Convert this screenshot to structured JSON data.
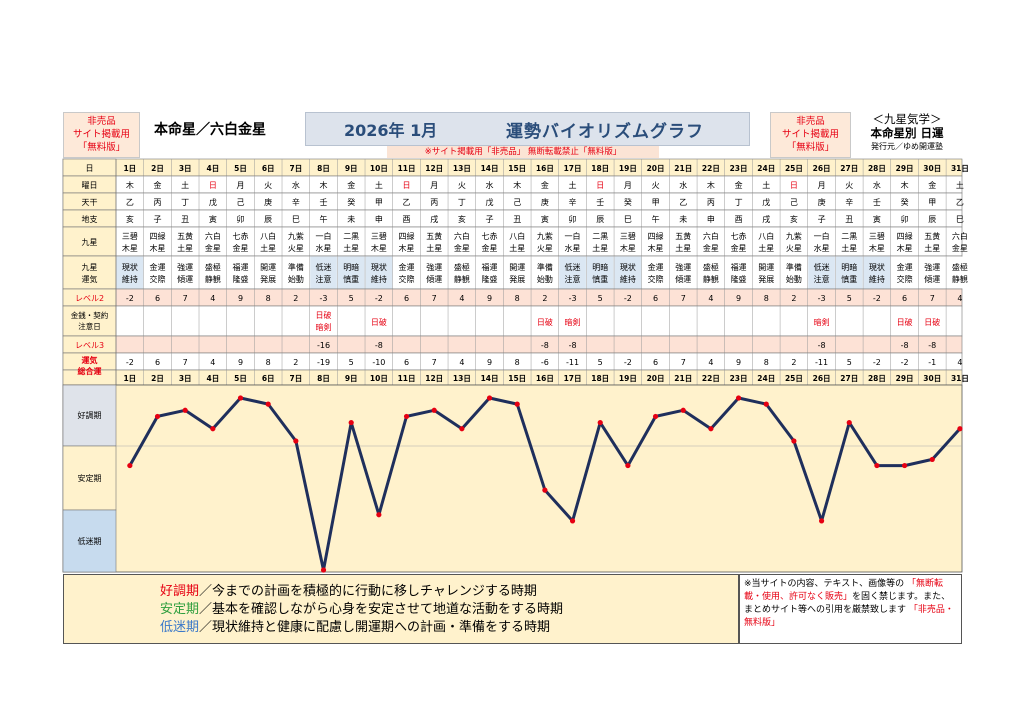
{
  "header": {
    "left_notice": [
      "非売品",
      "サイト掲載用",
      "「無料版」"
    ],
    "honmeisei": "本命星／六白金星",
    "year_month": "2026年 1月",
    "graph_title": "運勢バイオリズムグラフ",
    "notice_strip": "※サイト掲載用「非売品」 無断転載禁止「無料版」",
    "right_notice": [
      "非売品",
      "サイト掲載用",
      "「無料版」"
    ],
    "info_line1": "＜九星気学＞",
    "info_line2": "本命星別 日運",
    "info_line3": "発行元／ゆめ開運塾"
  },
  "row_labels": {
    "day": "日",
    "weekday": "曜日",
    "tenkan": "天干",
    "chishi": "地支",
    "kyusei": "九星",
    "kyusei_unki": "九星運気",
    "level2": "レベル2",
    "money": "金銭・契約注意日",
    "level3": "レベル3",
    "total": "運気総合運"
  },
  "days": [
    "1日",
    "2日",
    "3日",
    "4日",
    "5日",
    "6日",
    "7日",
    "8日",
    "9日",
    "10日",
    "11日",
    "12日",
    "13日",
    "14日",
    "15日",
    "16日",
    "17日",
    "18日",
    "19日",
    "20日",
    "21日",
    "22日",
    "23日",
    "24日",
    "25日",
    "26日",
    "27日",
    "28日",
    "29日",
    "30日",
    "31日"
  ],
  "weekdays": [
    "木",
    "金",
    "土",
    "日",
    "月",
    "火",
    "水",
    "木",
    "金",
    "土",
    "日",
    "月",
    "火",
    "水",
    "木",
    "金",
    "土",
    "日",
    "月",
    "火",
    "水",
    "木",
    "金",
    "土",
    "日",
    "月",
    "火",
    "水",
    "木",
    "金",
    "土"
  ],
  "weekday_red": [
    false,
    false,
    false,
    true,
    false,
    false,
    false,
    false,
    false,
    false,
    true,
    false,
    false,
    false,
    false,
    false,
    false,
    true,
    false,
    false,
    false,
    false,
    false,
    false,
    true,
    false,
    false,
    false,
    false,
    false,
    false
  ],
  "tenkan": [
    "乙",
    "丙",
    "丁",
    "戊",
    "己",
    "庚",
    "辛",
    "壬",
    "癸",
    "甲",
    "乙",
    "丙",
    "丁",
    "戊",
    "己",
    "庚",
    "辛",
    "壬",
    "癸",
    "甲",
    "乙",
    "丙",
    "丁",
    "戊",
    "己",
    "庚",
    "辛",
    "壬",
    "癸",
    "甲",
    "乙"
  ],
  "chishi": [
    "亥",
    "子",
    "丑",
    "寅",
    "卯",
    "辰",
    "巳",
    "午",
    "未",
    "申",
    "酉",
    "戌",
    "亥",
    "子",
    "丑",
    "寅",
    "卯",
    "辰",
    "巳",
    "午",
    "未",
    "申",
    "酉",
    "戌",
    "亥",
    "子",
    "丑",
    "寅",
    "卯",
    "辰",
    "巳"
  ],
  "kyusei": [
    "三碧木星",
    "四緑木星",
    "五黄土星",
    "六白金星",
    "七赤金星",
    "八白土星",
    "九紫火星",
    "一白水星",
    "二黒土星",
    "三碧木星",
    "四緑木星",
    "五黄土星",
    "六白金星",
    "七赤金星",
    "八白土星",
    "九紫火星",
    "一白水星",
    "二黒土星",
    "三碧木星",
    "四緑木星",
    "五黄土星",
    "六白金星",
    "七赤金星",
    "八白土星",
    "九紫火星",
    "一白水星",
    "二黒土星",
    "三碧木星",
    "四緑木星",
    "五黄土星",
    "六白金星"
  ],
  "unki": [
    "現状維持",
    "金運交際",
    "強運傾運",
    "盛極静観",
    "福運隆盛",
    "開運発展",
    "準備始動",
    "低迷注意",
    "明暗慎重",
    "現状維持",
    "金運交際",
    "強運傾運",
    "盛極静観",
    "福運隆盛",
    "開運発展",
    "準備始動",
    "低迷注意",
    "明暗慎重",
    "現状維持",
    "金運交際",
    "強運傾運",
    "盛極静観",
    "福運隆盛",
    "開運発展",
    "準備始動",
    "低迷注意",
    "明暗慎重",
    "現状維持",
    "金運交際",
    "強運傾運",
    "盛極静観"
  ],
  "level2": [
    "-2",
    "6",
    "7",
    "4",
    "9",
    "8",
    "2",
    "-3",
    "5",
    "-2",
    "6",
    "7",
    "4",
    "9",
    "8",
    "2",
    "-3",
    "5",
    "-2",
    "6",
    "7",
    "4",
    "9",
    "8",
    "2",
    "-3",
    "5",
    "-2",
    "6",
    "7",
    "4"
  ],
  "money_notes": [
    "",
    "",
    "",
    "",
    "",
    "",
    "",
    "日破暗剣",
    "",
    "日破",
    "",
    "",
    "",
    "",
    "",
    "日破",
    "暗剣",
    "",
    "",
    "",
    "",
    "",
    "",
    "",
    "",
    "暗剣",
    "",
    "",
    "日破",
    "日破",
    ""
  ],
  "level3": [
    "",
    "",
    "",
    "",
    "",
    "",
    "",
    "-16",
    "",
    "-8",
    "",
    "",
    "",
    "",
    "",
    "-8",
    "-8",
    "",
    "",
    "",
    "",
    "",
    "",
    "",
    "",
    "-8",
    "",
    "",
    "-8",
    "-8",
    ""
  ],
  "zone_labels": {
    "good": "好調期",
    "stable": "安定期",
    "low": "低迷期"
  },
  "legend": {
    "good_term": "好調期",
    "good_text": "／今までの計画を積極的に行動に移しチャレンジする時期",
    "stable_term": "安定期",
    "stable_text": "／基本を確認しながら心身を安定させて地道な活動をする時期",
    "low_term": "低迷期",
    "low_text": "／現状維持と健康に配慮し開運期への計画・準備をする時期"
  },
  "note": {
    "text1": "※当サイトの内容、テキスト、画像等の",
    "text2": "「無断転載・使用、許可なく販売」",
    "text3": "を固く禁じます。また、まとめサイト等への引用を厳禁致します",
    "text4": "「非売品・無料版」"
  },
  "colors": {
    "line": "#1f2f5c",
    "marker": "#e60012",
    "good_zone": "#dfe3ea",
    "stable_zone": "#fff2cc",
    "low_zone": "#c7dbee",
    "level_row": "#fde2d6",
    "header_row": "#fff2cc"
  },
  "chart_data": {
    "type": "line",
    "categories": [
      "1日",
      "2日",
      "3日",
      "4日",
      "5日",
      "6日",
      "7日",
      "8日",
      "9日",
      "10日",
      "11日",
      "12日",
      "13日",
      "14日",
      "15日",
      "16日",
      "17日",
      "18日",
      "19日",
      "20日",
      "21日",
      "22日",
      "23日",
      "24日",
      "25日",
      "26日",
      "27日",
      "28日",
      "29日",
      "30日",
      "31日"
    ],
    "series": [
      {
        "values": [
          -2,
          6,
          7,
          4,
          9,
          8,
          2,
          -19,
          5,
          -10,
          6,
          7,
          4,
          9,
          8,
          -6,
          -11,
          5,
          -2,
          6,
          7,
          4,
          9,
          8,
          2,
          -11,
          5,
          -2,
          -2,
          -1,
          4
        ]
      }
    ],
    "ylim": [
      -19,
      9
    ],
    "grid": false
  }
}
